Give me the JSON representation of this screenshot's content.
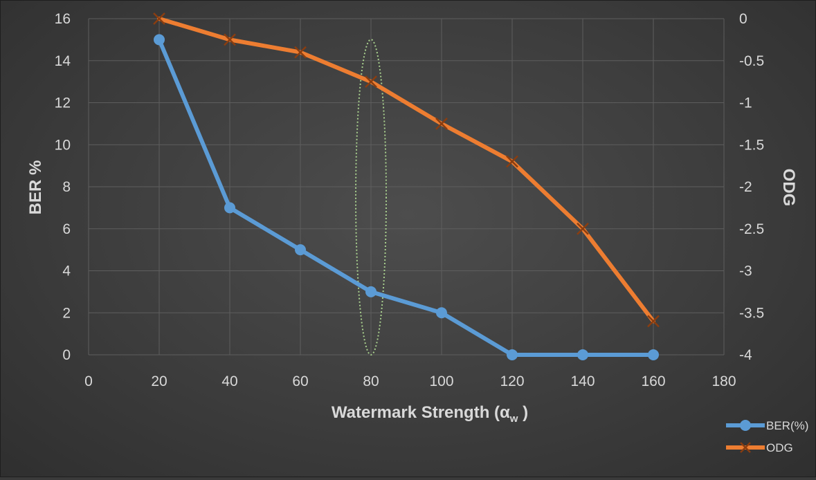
{
  "chart_data": {
    "type": "line",
    "title": "",
    "xlabel": "Watermark Strength (α",
    "xlabel_subscript": "w",
    "xlabel_suffix": " )",
    "ylabel": "BER %",
    "y2label": "ODG",
    "xlim": [
      0,
      180
    ],
    "ylim": [
      0,
      16
    ],
    "y2lim": [
      -4,
      0
    ],
    "x_ticks": [
      "0",
      "20",
      "40",
      "60",
      "80",
      "100",
      "120",
      "140",
      "160",
      "180"
    ],
    "y_ticks": [
      "0",
      "2",
      "4",
      "6",
      "8",
      "10",
      "12",
      "14",
      "16"
    ],
    "y2_ticks": [
      "-4",
      "-3.5",
      "-3",
      "-2.5",
      "-2",
      "-1.5",
      "-1",
      "-0.5",
      "0"
    ],
    "x": [
      20,
      40,
      60,
      80,
      100,
      120,
      140,
      160
    ],
    "series": [
      {
        "name": "BER(%)",
        "axis": "left",
        "marker": "circle",
        "color": "#5b9bd5",
        "values": [
          15,
          7,
          5,
          3,
          2,
          0,
          0,
          0
        ]
      },
      {
        "name": "ODG",
        "axis": "right",
        "marker": "x",
        "color": "#ed7d31",
        "values": [
          0,
          -0.25,
          -0.4,
          -0.75,
          -1.25,
          -1.7,
          -2.5,
          -3.6
        ]
      }
    ],
    "highlight": {
      "shape": "dotted-ellipse",
      "x": 80,
      "color": "#a9d18e"
    },
    "grid": true,
    "legend_position": "bottom-right"
  }
}
